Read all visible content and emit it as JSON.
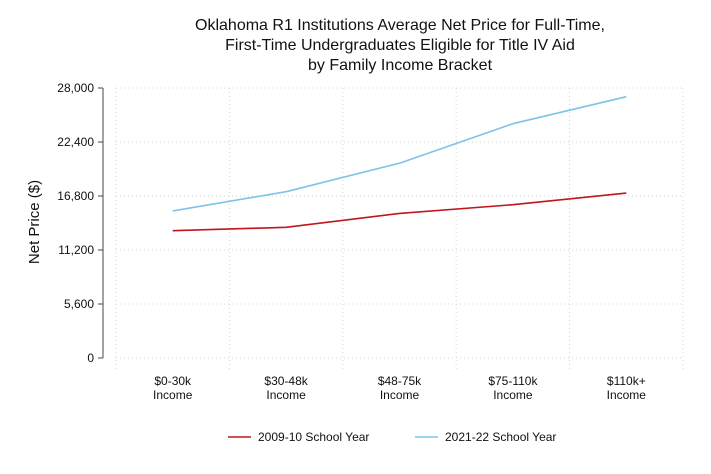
{
  "chart_data": {
    "type": "line",
    "title_lines": [
      "Oklahoma R1 Institutions Average Net Price for Full-Time,",
      "First-Time Undergraduates Eligible for Title IV Aid",
      "by Family Income Bracket"
    ],
    "ylabel": "Net Price ($)",
    "xlabel": "",
    "categories": [
      [
        "$0-30k",
        "Income"
      ],
      [
        "$30-48k",
        "Income"
      ],
      [
        "$48-75k",
        "Income"
      ],
      [
        "$75-110k",
        "Income"
      ],
      [
        "$110k+",
        "Income"
      ]
    ],
    "yticks": [
      0,
      5600,
      11200,
      16800,
      22400,
      28000
    ],
    "ytick_labels": [
      "0",
      "5,600",
      "11,200",
      "16,800",
      "22,400",
      "28,000"
    ],
    "ylim": [
      0,
      28000
    ],
    "grid": true,
    "legend_position": "bottom",
    "series": [
      {
        "name": "2009-10 School Year",
        "color": "#c0161c",
        "values": [
          13200,
          13550,
          15000,
          15900,
          17100
        ]
      },
      {
        "name": "2021-22 School Year",
        "color": "#7ec3e8",
        "values": [
          15250,
          17250,
          20200,
          24300,
          27100
        ]
      }
    ]
  }
}
